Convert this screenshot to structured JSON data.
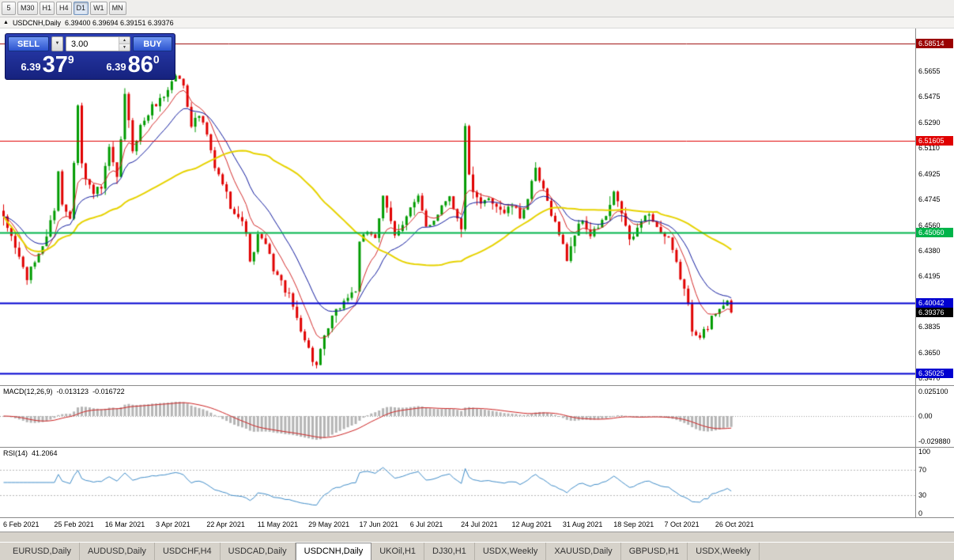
{
  "toolbar": {
    "timeframes": [
      {
        "label": "5",
        "active": false
      },
      {
        "label": "M30",
        "active": false
      },
      {
        "label": "H1",
        "active": false
      },
      {
        "label": "H4",
        "active": false
      },
      {
        "label": "D1",
        "active": true
      },
      {
        "label": "W1",
        "active": false
      },
      {
        "label": "MN",
        "active": false
      }
    ]
  },
  "chart_header": {
    "symbol": "USDCNH,Daily",
    "ohlc": "6.39400 6.39694 6.39151 6.39376"
  },
  "trade_panel": {
    "sell_label": "SELL",
    "buy_label": "BUY",
    "volume": "3.00",
    "price_prefix": "6.39",
    "sell_big": "37",
    "sell_sup": "9",
    "buy_big": "86",
    "buy_sup": "0"
  },
  "chart_data": {
    "type": "candlestick",
    "symbol": "USDCNH",
    "timeframe": "Daily",
    "current_ohlc": {
      "open": "6.39400",
      "high": "6.39694",
      "low": "6.39151",
      "close": "6.39376"
    },
    "price_range": {
      "top": 6.596,
      "bottom": 6.342
    },
    "candle_count": 187,
    "up_color": "#009b00",
    "down_color": "#e00000",
    "y_axis_ticks": [
      6.5655,
      6.5475,
      6.529,
      6.511,
      6.4925,
      6.4745,
      6.456,
      6.438,
      6.4195,
      6.3835,
      6.365,
      6.347
    ],
    "horizontal_lines": [
      {
        "price": 6.58514,
        "label": "6.58514",
        "color": "#9a0000",
        "width": 1
      },
      {
        "price": 6.51605,
        "label": "6.51605",
        "color": "#e00000",
        "width": 1
      },
      {
        "price": 6.4506,
        "label": "6.45060",
        "color": "#00b44a",
        "width": 2
      },
      {
        "price": 6.40042,
        "label": "6.40042",
        "color": "#0000d0",
        "width": 2
      },
      {
        "price": 6.35025,
        "label": "6.35025",
        "color": "#0000d0",
        "width": 2
      }
    ],
    "current_price": {
      "price": 6.39376,
      "label": "6.39376",
      "color": "#000000"
    },
    "moving_averages": [
      {
        "name": "fast-ma",
        "type": "ema",
        "period": 8,
        "color": "#d42a2a",
        "width": 1
      },
      {
        "name": "medium-ma",
        "type": "ema",
        "period": 17,
        "color": "#101a9e",
        "width": 1
      },
      {
        "name": "slow-ma",
        "type": "sma",
        "period": 50,
        "color": "#e6d200",
        "width": 2
      }
    ],
    "x_labels": [
      {
        "index": 0,
        "label": "6 Feb 2021"
      },
      {
        "index": 13,
        "label": "25 Feb 2021"
      },
      {
        "index": 26,
        "label": "16 Mar 2021"
      },
      {
        "index": 39,
        "label": "3 Apr 2021"
      },
      {
        "index": 52,
        "label": "22 Apr 2021"
      },
      {
        "index": 65,
        "label": "11 May 2021"
      },
      {
        "index": 78,
        "label": "29 May 2021"
      },
      {
        "index": 91,
        "label": "17 Jun 2021"
      },
      {
        "index": 104,
        "label": "6 Jul 2021"
      },
      {
        "index": 117,
        "label": "24 Jul 2021"
      },
      {
        "index": 130,
        "label": "12 Aug 2021"
      },
      {
        "index": 143,
        "label": "31 Aug 2021"
      },
      {
        "index": 156,
        "label": "18 Sep 2021"
      },
      {
        "index": 169,
        "label": "7 Oct 2021"
      },
      {
        "index": 182,
        "label": "26 Oct 2021"
      }
    ],
    "close_keyframes": [
      [
        0,
        6.46
      ],
      [
        2,
        6.448
      ],
      [
        4,
        6.433
      ],
      [
        6,
        6.418
      ],
      [
        8,
        6.43
      ],
      [
        11,
        6.448
      ],
      [
        13,
        6.468
      ],
      [
        14,
        6.495
      ],
      [
        15,
        6.47
      ],
      [
        17,
        6.462
      ],
      [
        19,
        6.543
      ],
      [
        20,
        6.5
      ],
      [
        21,
        6.488
      ],
      [
        23,
        6.48
      ],
      [
        25,
        6.482
      ],
      [
        27,
        6.51
      ],
      [
        29,
        6.488
      ],
      [
        31,
        6.548
      ],
      [
        33,
        6.51
      ],
      [
        35,
        6.526
      ],
      [
        38,
        6.54
      ],
      [
        41,
        6.548
      ],
      [
        44,
        6.563
      ],
      [
        46,
        6.556
      ],
      [
        48,
        6.528
      ],
      [
        50,
        6.534
      ],
      [
        52,
        6.52
      ],
      [
        54,
        6.496
      ],
      [
        56,
        6.486
      ],
      [
        58,
        6.47
      ],
      [
        60,
        6.462
      ],
      [
        62,
        6.452
      ],
      [
        63,
        6.428
      ],
      [
        65,
        6.448
      ],
      [
        67,
        6.442
      ],
      [
        69,
        6.425
      ],
      [
        71,
        6.415
      ],
      [
        73,
        6.405
      ],
      [
        75,
        6.39
      ],
      [
        77,
        6.375
      ],
      [
        79,
        6.36
      ],
      [
        80,
        6.356
      ],
      [
        82,
        6.375
      ],
      [
        84,
        6.39
      ],
      [
        86,
        6.398
      ],
      [
        88,
        6.405
      ],
      [
        90,
        6.41
      ],
      [
        91,
        6.442
      ],
      [
        93,
        6.452
      ],
      [
        95,
        6.448
      ],
      [
        97,
        6.475
      ],
      [
        99,
        6.458
      ],
      [
        100,
        6.448
      ],
      [
        102,
        6.458
      ],
      [
        104,
        6.468
      ],
      [
        106,
        6.475
      ],
      [
        108,
        6.455
      ],
      [
        110,
        6.46
      ],
      [
        112,
        6.47
      ],
      [
        114,
        6.478
      ],
      [
        116,
        6.46
      ],
      [
        117,
        6.452
      ],
      [
        118,
        6.528
      ],
      [
        119,
        6.49
      ],
      [
        120,
        6.478
      ],
      [
        122,
        6.47
      ],
      [
        124,
        6.476
      ],
      [
        126,
        6.47
      ],
      [
        128,
        6.465
      ],
      [
        130,
        6.47
      ],
      [
        132,
        6.462
      ],
      [
        134,
        6.475
      ],
      [
        136,
        6.495
      ],
      [
        138,
        6.48
      ],
      [
        140,
        6.465
      ],
      [
        142,
        6.45
      ],
      [
        144,
        6.432
      ],
      [
        146,
        6.45
      ],
      [
        148,
        6.46
      ],
      [
        150,
        6.448
      ],
      [
        152,
        6.455
      ],
      [
        154,
        6.462
      ],
      [
        156,
        6.478
      ],
      [
        158,
        6.465
      ],
      [
        160,
        6.445
      ],
      [
        162,
        6.452
      ],
      [
        164,
        6.465
      ],
      [
        166,
        6.46
      ],
      [
        168,
        6.45
      ],
      [
        170,
        6.445
      ],
      [
        172,
        6.428
      ],
      [
        174,
        6.41
      ],
      [
        175,
        6.398
      ],
      [
        176,
        6.382
      ],
      [
        178,
        6.378
      ],
      [
        180,
        6.382
      ],
      [
        181,
        6.39
      ],
      [
        183,
        6.398
      ],
      [
        185,
        6.402
      ],
      [
        186,
        6.3938
      ]
    ]
  },
  "macd_panel": {
    "label": "MACD(12,26,9)",
    "value_main": "-0.013123",
    "value_signal": "-0.016722",
    "params": [
      12,
      26,
      9
    ],
    "histogram_color": "#b4b4b4",
    "signal_color": "#cc2222",
    "axis_labels": [
      {
        "text": "0.025100",
        "pos": "top"
      },
      {
        "text": "0.00",
        "pos": "zero"
      },
      {
        "text": "-0.029880",
        "pos": "bottom"
      }
    ]
  },
  "rsi_panel": {
    "label": "RSI(14)",
    "value": "41.2064",
    "period": 14,
    "line_color": "#3f8cc8",
    "levels": [
      {
        "value": 100,
        "label": "100"
      },
      {
        "value": 70,
        "label": "70"
      },
      {
        "value": 30,
        "label": "30"
      },
      {
        "value": 0,
        "label": "0"
      }
    ]
  },
  "bottom_tabs": {
    "active_index": 4,
    "items": [
      "EURUSD,Daily",
      "AUDUSD,Daily",
      "USDCHF,H4",
      "USDCAD,Daily",
      "USDCNH,Daily",
      "UKOil,H1",
      "DJ30,H1",
      "USDX,Weekly",
      "XAUUSD,Daily",
      "GBPUSD,H1",
      "USDX,Weekly"
    ]
  }
}
